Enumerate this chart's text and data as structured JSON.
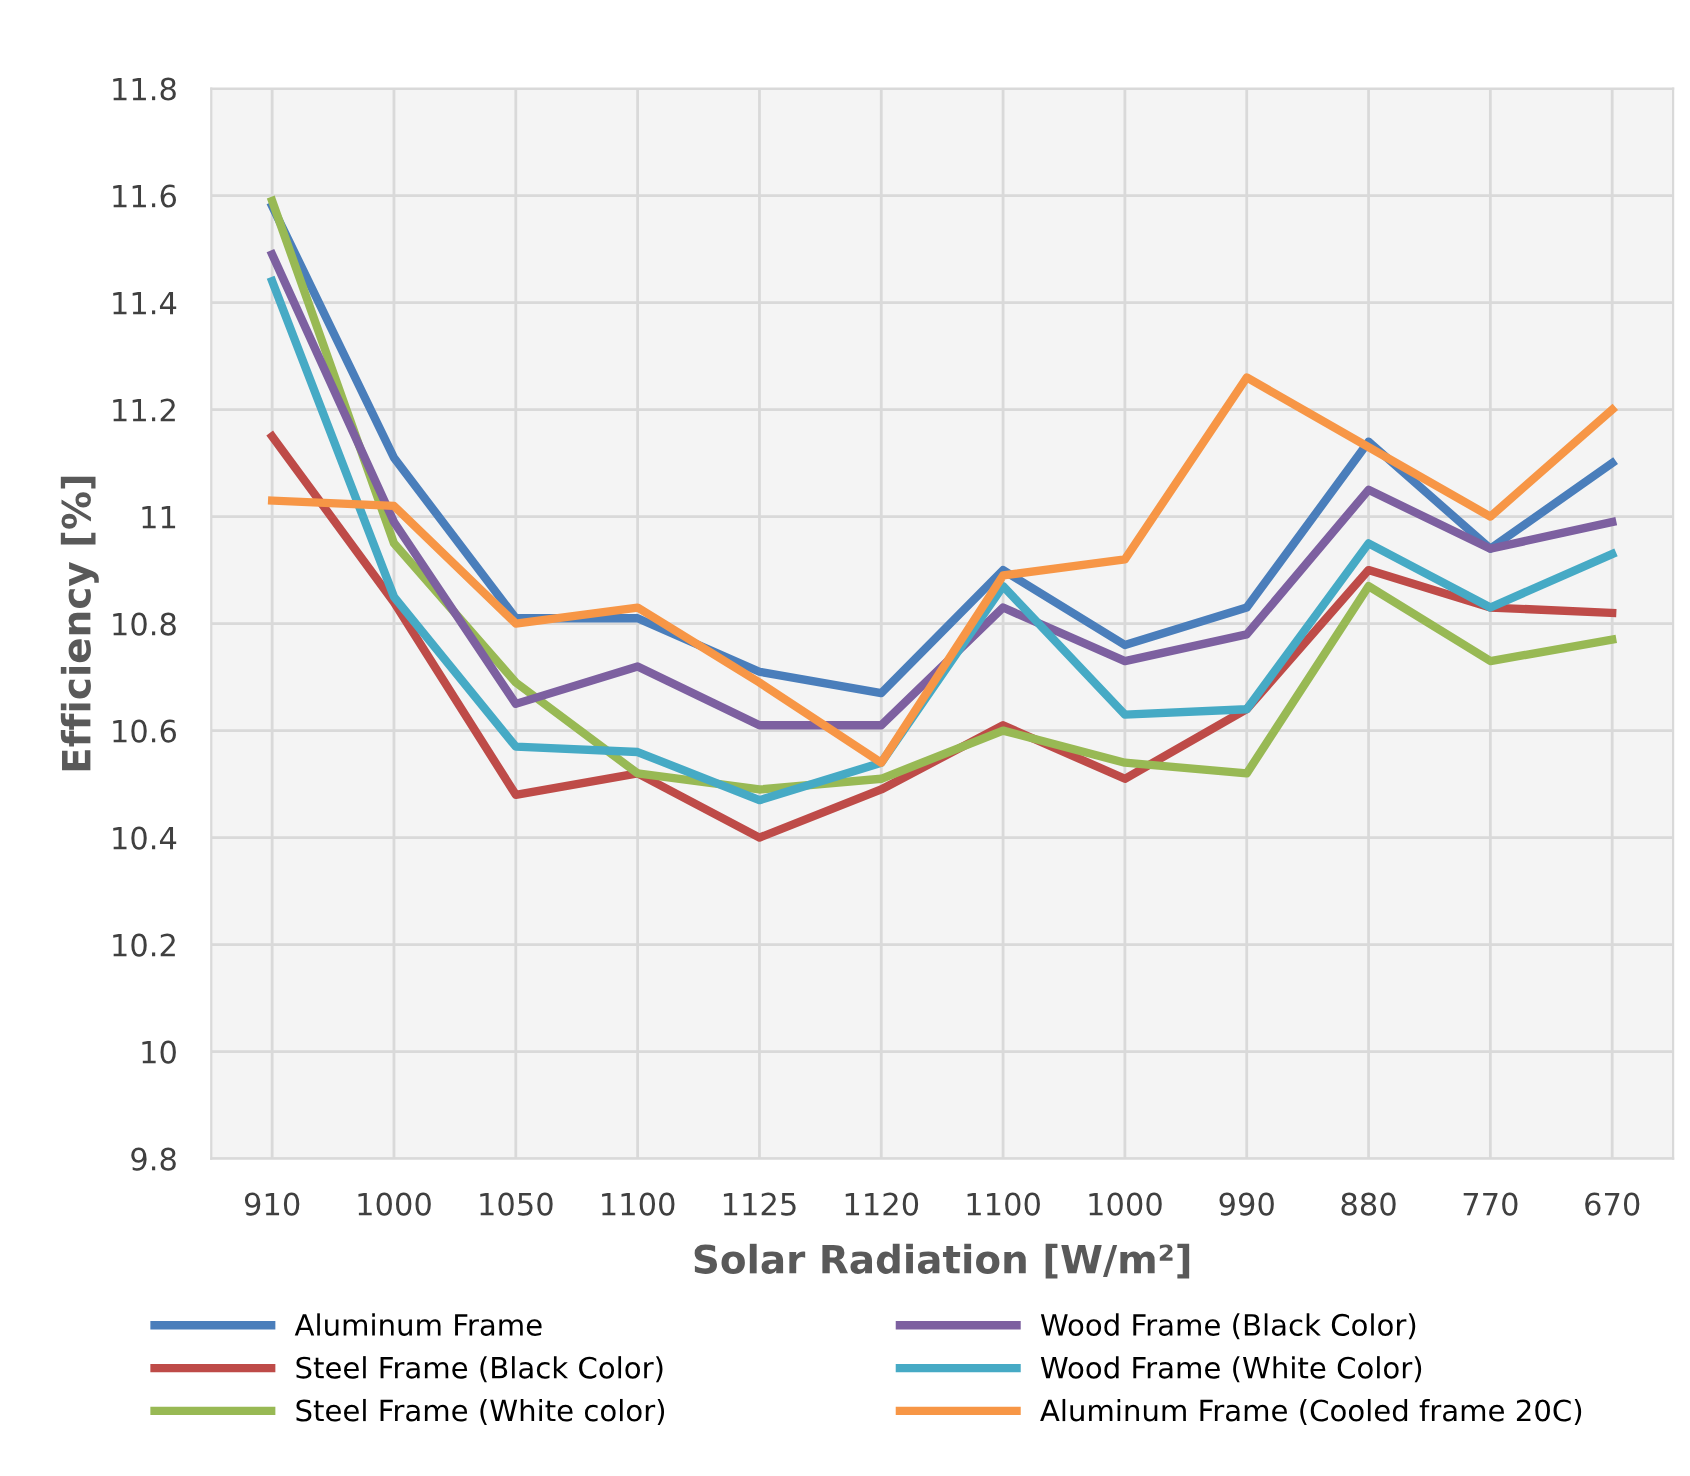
{
  "chart_data": {
    "type": "line",
    "xlabel": "Solar Radiation [W/m²]",
    "ylabel": "Efficiency [%]",
    "categories": [
      "910",
      "1000",
      "1050",
      "1100",
      "1125",
      "1120",
      "1100",
      "1000",
      "990",
      "880",
      "770",
      "670"
    ],
    "ylim": [
      9.8,
      11.8
    ],
    "yticks": [
      9.8,
      10,
      10.2,
      10.4,
      10.6,
      10.8,
      11,
      11.2,
      11.4,
      11.6,
      11.8
    ],
    "grid": true,
    "legend": "bottom",
    "marker": "none",
    "line_style": "solid",
    "series": [
      {
        "name": "Aluminum Frame",
        "color": "#4a7ebb",
        "values": [
          11.58,
          11.11,
          10.81,
          10.81,
          10.71,
          10.67,
          10.9,
          10.76,
          10.83,
          11.14,
          10.94,
          11.1
        ]
      },
      {
        "name": "Steel Frame (Black Color)",
        "color": "#be4b48",
        "values": [
          11.15,
          10.84,
          10.48,
          10.52,
          10.4,
          10.49,
          10.61,
          10.51,
          10.64,
          10.9,
          10.83,
          10.82
        ]
      },
      {
        "name": "Steel Frame (White color)",
        "color": "#98b954",
        "values": [
          11.59,
          10.95,
          10.69,
          10.52,
          10.49,
          10.51,
          10.6,
          10.54,
          10.52,
          10.87,
          10.73,
          10.77
        ]
      },
      {
        "name": "Wood Frame (Black Color)",
        "color": "#7d60a0",
        "values": [
          11.49,
          10.99,
          10.65,
          10.72,
          10.61,
          10.61,
          10.83,
          10.73,
          10.78,
          11.05,
          10.94,
          10.99
        ]
      },
      {
        "name": "Wood Frame (White Color)",
        "color": "#46aac5",
        "values": [
          11.44,
          10.85,
          10.57,
          10.56,
          10.47,
          10.54,
          10.87,
          10.63,
          10.64,
          10.95,
          10.83,
          10.93
        ]
      },
      {
        "name": "Aluminum Frame (Cooled frame 20C)",
        "color": "#f79646",
        "values": [
          11.03,
          11.02,
          10.8,
          10.83,
          10.69,
          10.54,
          10.89,
          10.92,
          11.26,
          11.13,
          11.0,
          11.2
        ]
      }
    ]
  }
}
